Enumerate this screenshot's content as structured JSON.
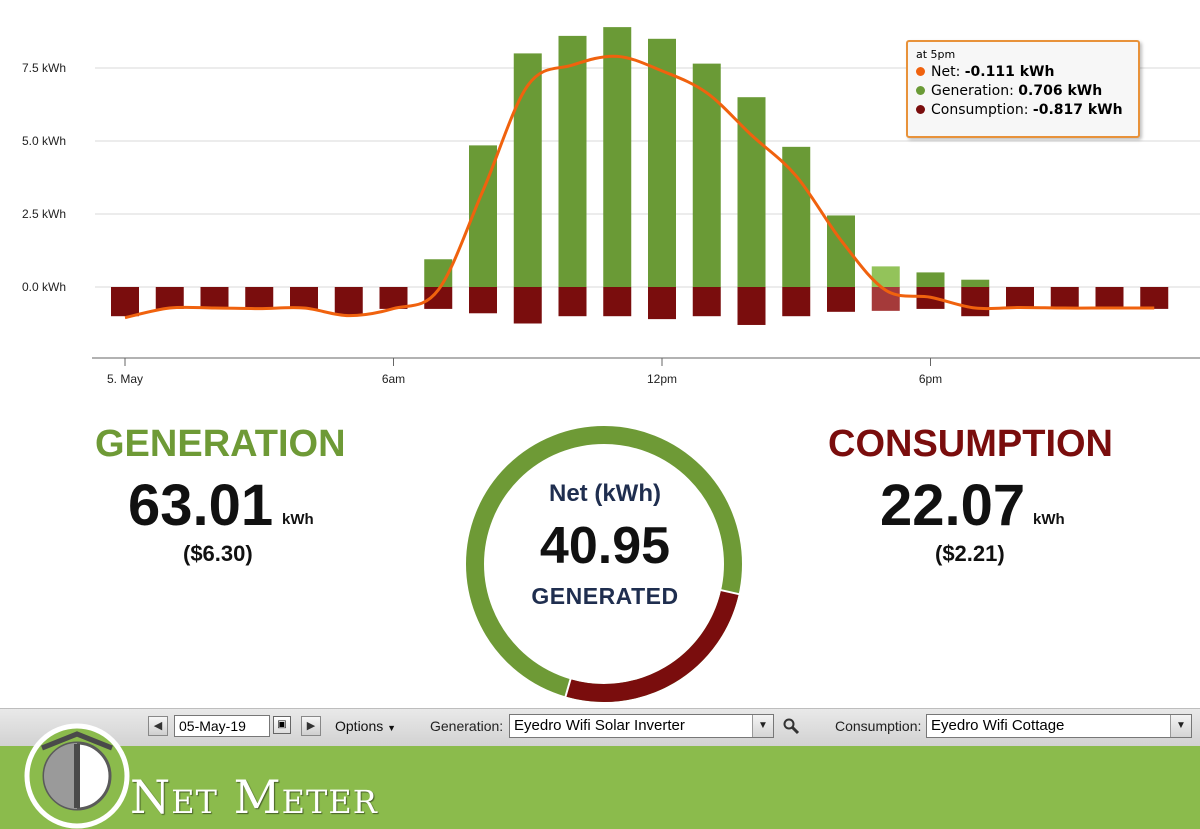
{
  "chart_data": {
    "type": "bar",
    "x_ticks": [
      "5. May",
      "6am",
      "12pm",
      "6pm"
    ],
    "y_ticks": [
      "7.5 kWh",
      "5.0 kWh",
      "2.5 kWh",
      "0.0 kWh"
    ],
    "ylim": [
      -2.4,
      9.5
    ],
    "hours": [
      0,
      1,
      2,
      3,
      4,
      5,
      6,
      7,
      8,
      9,
      10,
      11,
      12,
      13,
      14,
      15,
      16,
      17,
      18,
      19,
      20,
      21,
      22,
      23
    ],
    "series": [
      {
        "values": [
          0,
          0,
          0,
          0,
          0,
          0,
          0,
          0.95,
          4.85,
          8.0,
          8.6,
          8.9,
          8.5,
          7.65,
          6.5,
          4.8,
          2.45,
          0.706,
          0.5,
          0.25,
          0,
          0,
          0,
          0
        ],
        "color": "#6a9a36",
        "highlight_color": "#93c35a"
      },
      {
        "values": [
          -1.0,
          -0.75,
          -0.75,
          -0.75,
          -0.75,
          -0.95,
          -0.75,
          -0.75,
          -0.9,
          -1.25,
          -1.0,
          -1.0,
          -1.1,
          -1.0,
          -1.3,
          -1.0,
          -0.85,
          -0.817,
          -0.75,
          -1.0,
          -0.75,
          -0.75,
          -0.75,
          -0.75
        ],
        "color": "#7a0d0d",
        "highlight_color": "#a53a3a"
      },
      {
        "values": [
          -1.05,
          -0.72,
          -0.72,
          -0.74,
          -0.72,
          -0.98,
          -0.74,
          -0.1,
          3.3,
          6.9,
          7.6,
          7.9,
          7.4,
          6.65,
          5.2,
          3.8,
          1.6,
          -0.111,
          -0.35,
          -0.72,
          -0.7,
          -0.72,
          -0.72,
          -0.72
        ],
        "color": "#f0620e"
      }
    ],
    "highlight_index": 17,
    "grid": true
  },
  "tooltip": {
    "title": "at 5pm",
    "net_label": "Net: ",
    "net_value": "-0.111 kWh",
    "gen_label": "Generation: ",
    "gen_value": "0.706 kWh",
    "con_label": "Consumption: ",
    "con_value": "-0.817 kWh",
    "colors": {
      "net": "#f0620e",
      "gen": "#6a9a36",
      "con": "#7a0d0d"
    }
  },
  "generation": {
    "title": "GENERATION",
    "value": "63.01",
    "unit": "kWh",
    "cost": "($6.30)"
  },
  "consumption": {
    "title": "CONSUMPTION",
    "value": "22.07",
    "unit": "kWh",
    "cost": "($2.21)"
  },
  "net": {
    "label": "Net (kWh)",
    "value": "40.95",
    "status": "GENERATED",
    "consumption_fraction": 0.26,
    "gen_color": "#6e9a36",
    "con_color": "#7a0d0d"
  },
  "toolbar": {
    "date": "05-May-19",
    "options_label": "Options",
    "generation_label": "Generation:",
    "generation_source": "Eyedro Wifi Solar Inverter",
    "consumption_label": "Consumption:",
    "consumption_source": "Eyedro Wifi Cottage"
  },
  "footer": {
    "title": "Net Meter"
  }
}
